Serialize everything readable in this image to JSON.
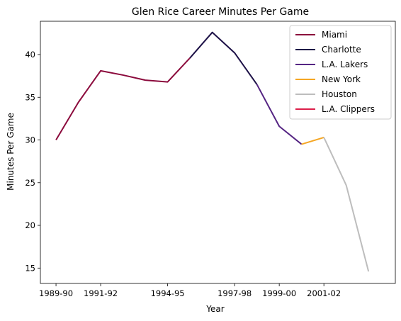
{
  "chart_data": {
    "type": "line",
    "title": "Glen Rice Career Minutes Per Game",
    "xlabel": "Year",
    "ylabel": "Minutes Per Game",
    "x": [
      "1989-90",
      "1990-91",
      "1991-92",
      "1992-93",
      "1993-94",
      "1994-95",
      "1995-96",
      "1996-97",
      "1997-98",
      "1998-99",
      "1999-00",
      "2000-01",
      "2001-02",
      "2002-03",
      "2003-04"
    ],
    "xticks": [
      "1989-90",
      "1991-92",
      "1994-95",
      "1997-98",
      "1999-00",
      "2001-02"
    ],
    "yticks": [
      15,
      20,
      25,
      30,
      35,
      40
    ],
    "ylim": [
      13.2,
      43.9
    ],
    "xlim": [
      -0.7,
      15.2
    ],
    "grid": false,
    "legend_position": "top-right",
    "series": [
      {
        "name": "Miami",
        "color": "#8b0a3c",
        "points": [
          [
            0,
            30.0
          ],
          [
            1,
            34.4
          ],
          [
            2,
            38.1
          ],
          [
            3,
            37.6
          ],
          [
            4,
            37.0
          ],
          [
            5,
            36.8
          ],
          [
            6,
            39.6
          ]
        ]
      },
      {
        "name": "Charlotte",
        "color": "#1d1147",
        "points": [
          [
            6,
            39.6
          ],
          [
            7,
            42.6
          ],
          [
            8,
            40.2
          ],
          [
            9,
            36.5
          ]
        ]
      },
      {
        "name": "L.A. Lakers",
        "color": "#552583",
        "points": [
          [
            9,
            36.5
          ],
          [
            10,
            31.6
          ],
          [
            11,
            29.5
          ]
        ]
      },
      {
        "name": "New York",
        "color": "#f5a623",
        "points": [
          [
            11,
            29.5
          ],
          [
            12,
            30.3
          ]
        ]
      },
      {
        "name": "Houston",
        "color": "#bdbdbd",
        "points": [
          [
            12,
            30.3
          ],
          [
            13,
            24.7
          ],
          [
            14,
            14.6
          ]
        ]
      },
      {
        "name": "L.A. Clippers",
        "color": "#dc1f4a",
        "points": []
      }
    ]
  }
}
